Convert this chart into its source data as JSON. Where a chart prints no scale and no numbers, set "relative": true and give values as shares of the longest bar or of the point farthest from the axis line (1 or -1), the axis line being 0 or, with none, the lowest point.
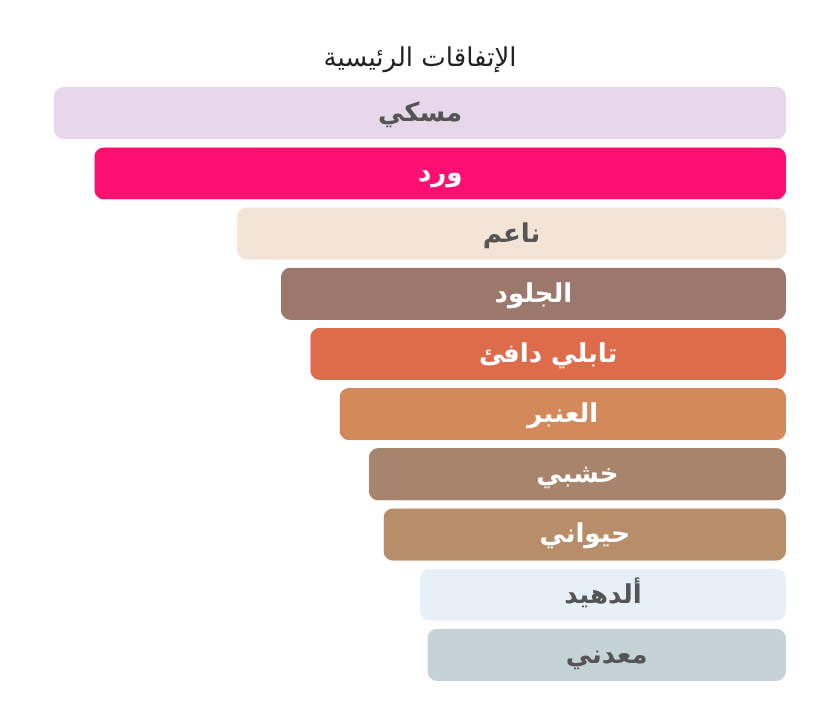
{
  "chart_data": {
    "type": "bar",
    "title": "الإتفاقات الرئيسية",
    "orientation": "horizontal",
    "relative": true,
    "categories": [
      "مسكي",
      "ورد",
      "ناعم",
      "الجلود",
      "تابلي دافئ",
      "العنبر",
      "خشبي",
      "حيواني",
      "ألدهيد",
      "معدني"
    ],
    "values": [
      1.0,
      0.945,
      0.75,
      0.69,
      0.65,
      0.61,
      0.57,
      0.55,
      0.5,
      0.49
    ],
    "colors": [
      "#e6d7ea",
      "#fe0f72",
      "#f3e4d7",
      "#9b786b",
      "#de6c4a",
      "#d4895b",
      "#a7846b",
      "#b88e6a",
      "#e8f0f7",
      "#c5d2d6"
    ]
  }
}
